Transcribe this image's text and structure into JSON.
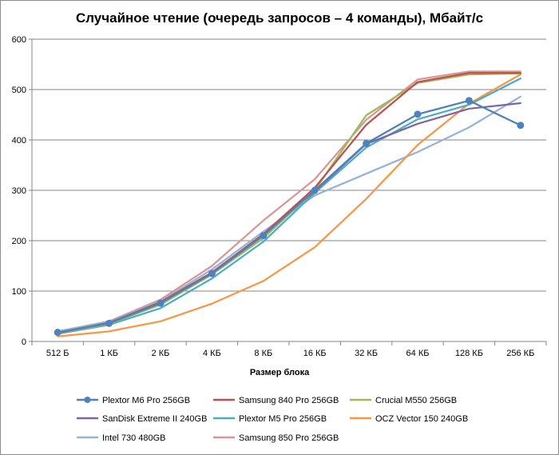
{
  "chart_data": {
    "type": "line",
    "title": "Случайное чтение (очередь запросов – 4 команды), Мбайт/с",
    "xlabel": "Размер блока",
    "ylabel": "",
    "ylim": [
      0,
      600
    ],
    "yticks": [
      "0",
      "100",
      "200",
      "300",
      "400",
      "500",
      "600"
    ],
    "categories": [
      "512 Б",
      "1 КБ",
      "2 КБ",
      "4 КБ",
      "8 КБ",
      "16 КБ",
      "32 КБ",
      "64 КБ",
      "128 КБ",
      "256 КБ"
    ],
    "grid": "horizontal",
    "legend_position": "bottom",
    "series": [
      {
        "name": "Plextor M6 Pro 256GB",
        "color": "#4f81bd",
        "marker": "circle",
        "values": [
          18,
          36,
          76,
          135,
          210,
          300,
          393,
          451,
          478,
          429
        ]
      },
      {
        "name": "Samsung 840 Pro 256GB",
        "color": "#c0504d",
        "marker": "none",
        "values": [
          17,
          37,
          78,
          137,
          213,
          305,
          430,
          515,
          533,
          533
        ]
      },
      {
        "name": "Crucial M550 256GB",
        "color": "#9bbb59",
        "marker": "none",
        "values": [
          16,
          35,
          73,
          133,
          205,
          300,
          449,
          513,
          530,
          532
        ]
      },
      {
        "name": "SanDisk Extreme II 240GB",
        "color": "#8064a2",
        "marker": "none",
        "values": [
          17,
          37,
          74,
          133,
          213,
          298,
          392,
          432,
          462,
          473
        ]
      },
      {
        "name": "Plextor M5 Pro 256GB",
        "color": "#4bacc6",
        "marker": "none",
        "values": [
          15,
          33,
          66,
          125,
          198,
          295,
          385,
          441,
          470,
          522
        ]
      },
      {
        "name": "OCZ Vector 150 240GB",
        "color": "#f79646",
        "marker": "none",
        "values": [
          10,
          20,
          40,
          75,
          120,
          187,
          283,
          390,
          472,
          530
        ]
      },
      {
        "name": "Intel 730 480GB",
        "color": "#95b3d7",
        "marker": "none",
        "values": [
          20,
          40,
          80,
          143,
          218,
          290,
          333,
          376,
          425,
          486
        ]
      },
      {
        "name": "Samsung 850 Pro 256GB",
        "color": "#d99694",
        "marker": "none",
        "values": [
          19,
          40,
          83,
          150,
          240,
          322,
          440,
          520,
          536,
          536
        ]
      }
    ]
  }
}
